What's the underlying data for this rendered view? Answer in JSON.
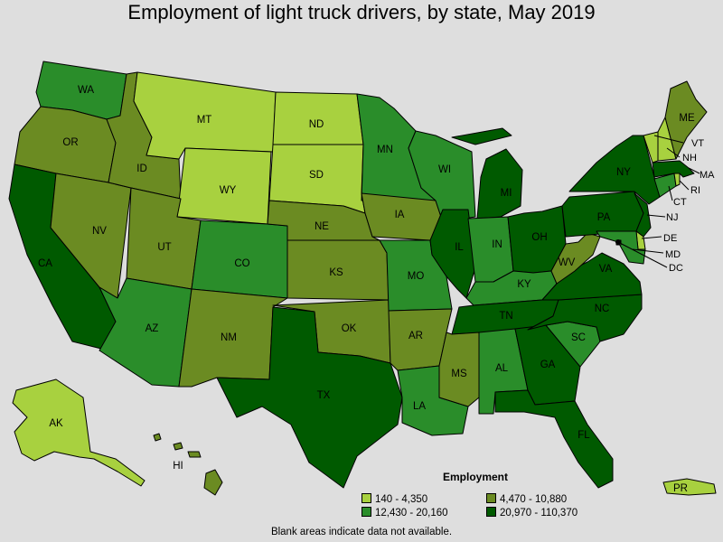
{
  "title": "Employment of light truck drivers, by state, May 2019",
  "colors": {
    "c1": "#a8d13f",
    "c2": "#2a8d2a",
    "c3": "#6b8b22",
    "c4": "#005a00",
    "border": "#000000",
    "background": "#dedede"
  },
  "legend": {
    "title": "Employment",
    "items": [
      {
        "label": "140 - 4,350",
        "color": "#a8d13f"
      },
      {
        "label": "4,470 - 10,880",
        "color": "#6b8b22"
      },
      {
        "label": "12,430 - 20,160",
        "color": "#2a8d2a"
      },
      {
        "label": "20,970 - 110,370",
        "color": "#005a00"
      }
    ]
  },
  "footnote": "Blank areas indicate data not available.",
  "states": {
    "WA": "c2",
    "OR": "c3",
    "CA": "c4",
    "NV": "c3",
    "ID": "c3",
    "MT": "c1",
    "WY": "c1",
    "UT": "c3",
    "AZ": "c2",
    "CO": "c2",
    "NM": "c3",
    "ND": "c1",
    "SD": "c1",
    "NE": "c3",
    "KS": "c3",
    "OK": "c3",
    "TX": "c4",
    "MN": "c2",
    "IA": "c3",
    "MO": "c2",
    "AR": "c3",
    "LA": "c2",
    "WI": "c2",
    "IL": "c4",
    "MI": "c4",
    "IN": "c2",
    "OH": "c4",
    "KY": "c2",
    "TN": "c4",
    "MS": "c3",
    "AL": "c2",
    "GA": "c4",
    "FL": "c4",
    "SC": "c2",
    "NC": "c4",
    "VA": "c4",
    "WV": "c3",
    "PA": "c4",
    "NY": "c4",
    "VT": "c1",
    "NH": "c1",
    "ME": "c3",
    "MA": "c4",
    "RI": "c1",
    "CT": "c2",
    "NJ": "c4",
    "DE": "c1",
    "MD": "c2",
    "DC": "c1",
    "AK": "c1",
    "HI": "c3",
    "PR": "c1"
  },
  "labels": {
    "WA": "WA",
    "OR": "OR",
    "CA": "CA",
    "NV": "NV",
    "ID": "ID",
    "MT": "MT",
    "WY": "WY",
    "UT": "UT",
    "AZ": "AZ",
    "CO": "CO",
    "NM": "NM",
    "ND": "ND",
    "SD": "SD",
    "NE": "NE",
    "KS": "KS",
    "OK": "OK",
    "TX": "TX",
    "MN": "MN",
    "IA": "IA",
    "MO": "MO",
    "AR": "AR",
    "LA": "LA",
    "WI": "WI",
    "IL": "IL",
    "MI": "MI",
    "IN": "IN",
    "OH": "OH",
    "KY": "KY",
    "TN": "TN",
    "MS": "MS",
    "AL": "AL",
    "GA": "GA",
    "FL": "FL",
    "SC": "SC",
    "NC": "NC",
    "VA": "VA",
    "WV": "WV",
    "PA": "PA",
    "NY": "NY",
    "VT": "VT",
    "NH": "NH",
    "ME": "ME",
    "MA": "MA",
    "RI": "RI",
    "CT": "CT",
    "NJ": "NJ",
    "DE": "DE",
    "MD": "MD",
    "DC": "DC",
    "AK": "AK",
    "HI": "HI",
    "PR": "PR"
  }
}
